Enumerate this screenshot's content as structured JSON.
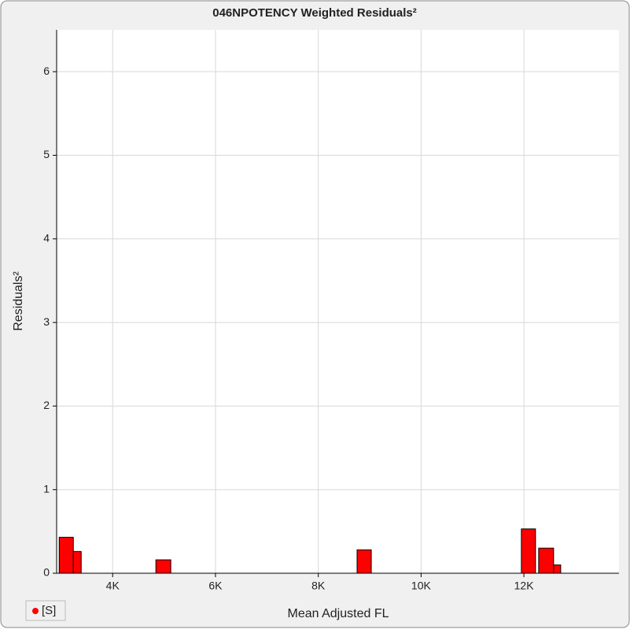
{
  "chart_data": {
    "type": "bar",
    "title": "046NPOTENCY Weighted Residuals²",
    "x_label": "Mean Adjusted FL",
    "y_label": "Residuals²",
    "series": [
      {
        "name": "[S]",
        "color": "#ff0000",
        "x_ranges": [
          [
            2960,
            3235
          ],
          [
            3235,
            3388
          ],
          [
            4841,
            5131
          ],
          [
            8755,
            9031
          ],
          [
            11951,
            12226
          ],
          [
            12287,
            12578
          ],
          [
            12578,
            12716
          ]
        ],
        "values": [
          0.43,
          0.26,
          0.16,
          0.28,
          0.53,
          0.3,
          0.1
        ]
      }
    ],
    "xlim": [
      2910,
      13850
    ],
    "xticks": [
      {
        "value": 4000,
        "label": "4K"
      },
      {
        "value": 6000,
        "label": "6K"
      },
      {
        "value": 8000,
        "label": "8K"
      },
      {
        "value": 10000,
        "label": "10K"
      },
      {
        "value": 12000,
        "label": "12K"
      }
    ],
    "ylim": [
      0,
      6.5
    ],
    "yticks": [
      0,
      1,
      2,
      3,
      4,
      5,
      6
    ],
    "grid": true,
    "legend": "bottom-left"
  }
}
